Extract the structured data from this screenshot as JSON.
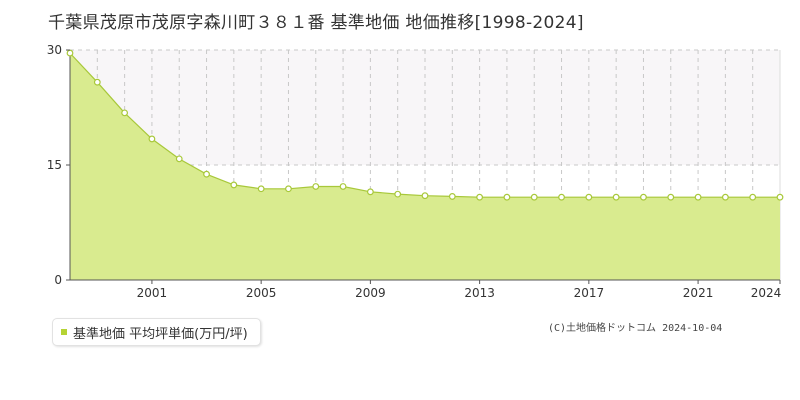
{
  "title": "千葉県茂原市茂原字森川町３８１番 基準地価 地価推移[1998-2024]",
  "credit": "(C)土地価格ドットコム 2024-10-04",
  "colors": {
    "fill": "#d9eb8f",
    "line": "#a8c83a",
    "point_fill": "#ffffff",
    "point_stroke": "#a8c83a",
    "upper_band": "#f8f6f8",
    "grid": "#c8c8c8",
    "legend_swatch": "#b5d334"
  },
  "chart_data": {
    "type": "area",
    "title": "千葉県茂原市茂原字森川町３８１番 基準地価 地価推移[1998-2024]",
    "xlabel": "",
    "ylabel": "",
    "x": [
      1998,
      1999,
      2000,
      2001,
      2002,
      2003,
      2004,
      2005,
      2006,
      2007,
      2008,
      2009,
      2010,
      2011,
      2012,
      2013,
      2014,
      2015,
      2016,
      2017,
      2018,
      2019,
      2020,
      2021,
      2022,
      2023,
      2024
    ],
    "series": [
      {
        "name": "基準地価 平均坪単価(万円/坪)",
        "values": [
          29.6,
          25.8,
          21.8,
          18.4,
          15.8,
          13.8,
          12.4,
          11.9,
          11.9,
          12.2,
          12.2,
          11.5,
          11.2,
          11.0,
          10.9,
          10.8,
          10.8,
          10.8,
          10.8,
          10.8,
          10.8,
          10.8,
          10.8,
          10.8,
          10.8,
          10.8,
          10.8
        ]
      }
    ],
    "ylim": [
      0,
      30
    ],
    "xlim": [
      1998,
      2024
    ],
    "yticks": [
      0,
      15,
      30
    ],
    "xticks": [
      2001,
      2005,
      2009,
      2013,
      2017,
      2021,
      2024
    ],
    "grid": true,
    "legend": "bottom-left"
  }
}
